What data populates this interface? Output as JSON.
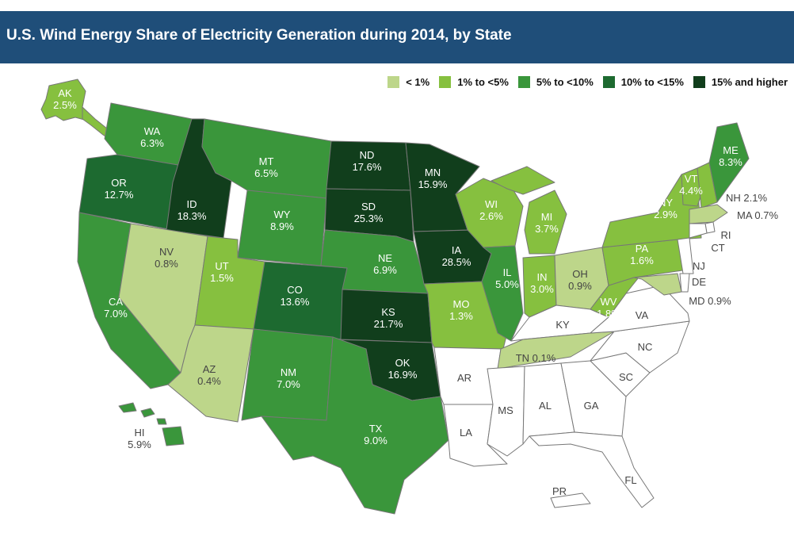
{
  "title": "U.S. Wind Energy Share of Electricity Generation during 2014, by State",
  "colors": {
    "lt1": "#bdd68a",
    "1to5": "#86c03f",
    "5to10": "#3a963b",
    "10to15": "#1d6a30",
    "15plus": "#113e1c",
    "none": "#ffffff",
    "border": "#777777",
    "labelDark": "#444444",
    "labelLight": "#ffffff"
  },
  "legend": [
    {
      "label": "< 1%",
      "color_key": "lt1"
    },
    {
      "label": "1% to <5%",
      "color_key": "1to5"
    },
    {
      "label": "5% to <10%",
      "color_key": "5to10"
    },
    {
      "label": "10% to <15%",
      "color_key": "10to15"
    },
    {
      "label": "15% and higher",
      "color_key": "15plus"
    }
  ],
  "states": {
    "AK": {
      "name": "AK",
      "value": "2.5%",
      "color_key": "1to5"
    },
    "HI": {
      "name": "HI",
      "value": "5.9%",
      "color_key": "5to10"
    },
    "WA": {
      "name": "WA",
      "value": "6.3%",
      "color_key": "5to10"
    },
    "OR": {
      "name": "OR",
      "value": "12.7%",
      "color_key": "10to15"
    },
    "CA": {
      "name": "CA",
      "value": "7.0%",
      "color_key": "5to10"
    },
    "ID": {
      "name": "ID",
      "value": "18.3%",
      "color_key": "15plus"
    },
    "NV": {
      "name": "NV",
      "value": "0.8%",
      "color_key": "lt1"
    },
    "MT": {
      "name": "MT",
      "value": "6.5%",
      "color_key": "5to10"
    },
    "WY": {
      "name": "WY",
      "value": "8.9%",
      "color_key": "5to10"
    },
    "UT": {
      "name": "UT",
      "value": "1.5%",
      "color_key": "1to5"
    },
    "AZ": {
      "name": "AZ",
      "value": "0.4%",
      "color_key": "lt1"
    },
    "CO": {
      "name": "CO",
      "value": "13.6%",
      "color_key": "10to15"
    },
    "NM": {
      "name": "NM",
      "value": "7.0%",
      "color_key": "5to10"
    },
    "ND": {
      "name": "ND",
      "value": "17.6%",
      "color_key": "15plus"
    },
    "SD": {
      "name": "SD",
      "value": "25.3%",
      "color_key": "15plus"
    },
    "NE": {
      "name": "NE",
      "value": "6.9%",
      "color_key": "5to10"
    },
    "KS": {
      "name": "KS",
      "value": "21.7%",
      "color_key": "15plus"
    },
    "OK": {
      "name": "OK",
      "value": "16.9%",
      "color_key": "15plus"
    },
    "TX": {
      "name": "TX",
      "value": "9.0%",
      "color_key": "5to10"
    },
    "MN": {
      "name": "MN",
      "value": "15.9%",
      "color_key": "15plus"
    },
    "IA": {
      "name": "IA",
      "value": "28.5%",
      "color_key": "15plus"
    },
    "MO": {
      "name": "MO",
      "value": "1.3%",
      "color_key": "1to5"
    },
    "AR": {
      "name": "AR",
      "value": "",
      "color_key": "none"
    },
    "LA": {
      "name": "LA",
      "value": "",
      "color_key": "none"
    },
    "WI": {
      "name": "WI",
      "value": "2.6%",
      "color_key": "1to5"
    },
    "IL": {
      "name": "IL",
      "value": "5.0%",
      "color_key": "5to10"
    },
    "MI": {
      "name": "MI",
      "value": "3.7%",
      "color_key": "1to5"
    },
    "IN": {
      "name": "IN",
      "value": "3.0%",
      "color_key": "1to5"
    },
    "OH": {
      "name": "OH",
      "value": "0.9%",
      "color_key": "lt1"
    },
    "KY": {
      "name": "KY",
      "value": "",
      "color_key": "none"
    },
    "TN": {
      "name": "TN 0.1%",
      "value": "",
      "color_key": "lt1"
    },
    "MS": {
      "name": "MS",
      "value": "",
      "color_key": "none"
    },
    "AL": {
      "name": "AL",
      "value": "",
      "color_key": "none"
    },
    "GA": {
      "name": "GA",
      "value": "",
      "color_key": "none"
    },
    "FL": {
      "name": "FL",
      "value": "",
      "color_key": "none"
    },
    "SC": {
      "name": "SC",
      "value": "",
      "color_key": "none"
    },
    "NC": {
      "name": "NC",
      "value": "",
      "color_key": "none"
    },
    "VA": {
      "name": "VA",
      "value": "",
      "color_key": "none"
    },
    "WV": {
      "name": "WV",
      "value": "1.8%",
      "color_key": "1to5"
    },
    "PA": {
      "name": "PA",
      "value": "1.6%",
      "color_key": "1to5"
    },
    "NY": {
      "name": "NY",
      "value": "2.9%",
      "color_key": "1to5"
    },
    "VT": {
      "name": "VT",
      "value": "4.4%",
      "color_key": "1to5"
    },
    "NH": {
      "name": "NH 2.1%",
      "value": "",
      "color_key": "1to5"
    },
    "ME": {
      "name": "ME",
      "value": "8.3%",
      "color_key": "5to10"
    },
    "MA": {
      "name": "MA 0.7%",
      "value": "",
      "color_key": "lt1"
    },
    "RI": {
      "name": "RI",
      "value": "",
      "color_key": "none"
    },
    "CT": {
      "name": "CT",
      "value": "",
      "color_key": "none"
    },
    "NJ": {
      "name": "NJ",
      "value": "",
      "color_key": "none"
    },
    "DE": {
      "name": "DE",
      "value": "",
      "color_key": "none"
    },
    "MD": {
      "name": "MD 0.9%",
      "value": "",
      "color_key": "lt1"
    },
    "PR": {
      "name": "PR",
      "value": "",
      "color_key": "none"
    }
  }
}
